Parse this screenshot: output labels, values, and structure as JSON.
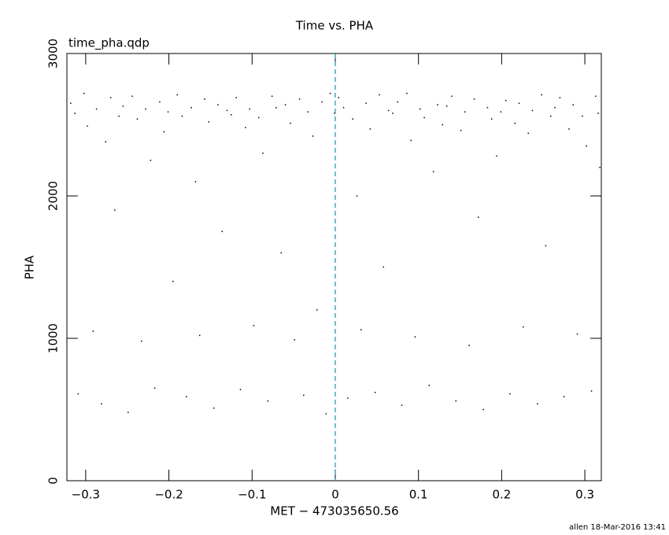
{
  "chart_data": {
    "type": "scatter",
    "title": "Time vs. PHA",
    "subtitle": "time_pha.qdp",
    "x_label": "MET − 473035650.56",
    "y_label": "PHA",
    "footer": "allen 18-Mar-2016 13:41",
    "color": "#000000",
    "xlim": [
      -0.3226,
      0.3198
    ],
    "ylim": [
      0,
      3000
    ],
    "xticks": [
      {
        "value": -0.3,
        "label": "−0.3"
      },
      {
        "value": -0.2,
        "label": "−0.2"
      },
      {
        "value": -0.1,
        "label": "−0.1"
      },
      0,
      0.1,
      0.2,
      0.3
    ],
    "yticks": [
      0,
      1000,
      2000,
      3000
    ],
    "vline": {
      "x": 0,
      "color": "#1b8fa0"
    },
    "x": [
      -0.318,
      -0.313,
      -0.309,
      -0.302,
      -0.298,
      -0.291,
      -0.287,
      -0.281,
      -0.276,
      -0.27,
      -0.265,
      -0.26,
      -0.255,
      -0.249,
      -0.244,
      -0.238,
      -0.233,
      -0.228,
      -0.222,
      -0.217,
      -0.211,
      -0.206,
      -0.201,
      -0.195,
      -0.19,
      -0.184,
      -0.179,
      -0.173,
      -0.168,
      -0.163,
      -0.157,
      -0.152,
      -0.146,
      -0.141,
      -0.136,
      -0.13,
      -0.125,
      -0.119,
      -0.114,
      -0.108,
      -0.103,
      -0.098,
      -0.092,
      -0.087,
      -0.081,
      -0.076,
      -0.071,
      -0.065,
      -0.06,
      -0.054,
      -0.049,
      -0.043,
      -0.038,
      -0.033,
      -0.027,
      -0.022,
      -0.016,
      -0.011,
      -0.006,
      -0.001,
      0.004,
      0.01,
      0.015,
      0.021,
      0.026,
      0.031,
      0.037,
      0.042,
      0.048,
      0.053,
      0.058,
      0.064,
      0.069,
      0.075,
      0.08,
      0.086,
      0.091,
      0.096,
      0.102,
      0.107,
      0.113,
      0.118,
      0.123,
      0.129,
      0.134,
      0.14,
      0.145,
      0.151,
      0.156,
      0.161,
      0.167,
      0.172,
      0.178,
      0.183,
      0.188,
      0.194,
      0.199,
      0.205,
      0.21,
      0.216,
      0.221,
      0.226,
      0.232,
      0.237,
      0.243,
      0.248,
      0.253,
      0.259,
      0.264,
      0.27,
      0.275,
      0.281,
      0.286,
      0.291,
      0.297,
      0.302,
      0.308,
      0.313,
      0.316,
      0.318
    ],
    "y": [
      2650,
      2580,
      610,
      2720,
      2490,
      1050,
      2610,
      540,
      2380,
      2690,
      1900,
      2560,
      2630,
      480,
      2700,
      2540,
      980,
      2610,
      2250,
      650,
      2660,
      2450,
      2590,
      1400,
      2710,
      2560,
      590,
      2620,
      2100,
      1020,
      2680,
      2520,
      510,
      2640,
      1750,
      2600,
      2570,
      2690,
      640,
      2480,
      2610,
      1090,
      2550,
      2300,
      560,
      2700,
      2620,
      1600,
      2640,
      2510,
      990,
      2680,
      600,
      2590,
      2420,
      1200,
      2660,
      470,
      2720,
      2580,
      2690,
      2620,
      580,
      2540,
      2000,
      1060,
      2650,
      2470,
      620,
      2710,
      1500,
      2600,
      2580,
      2660,
      530,
      2720,
      2390,
      1010,
      2610,
      2550,
      670,
      2170,
      2640,
      2500,
      2630,
      2700,
      560,
      2460,
      2590,
      950,
      2680,
      1850,
      500,
      2620,
      2540,
      2280,
      2590,
      2670,
      610,
      2510,
      2650,
      1080,
      2440,
      2600,
      540,
      2710,
      1650,
      2560,
      2620,
      2690,
      590,
      2470,
      2640,
      1030,
      2560,
      2350,
      630,
      2700,
      2580,
      2200
    ]
  }
}
